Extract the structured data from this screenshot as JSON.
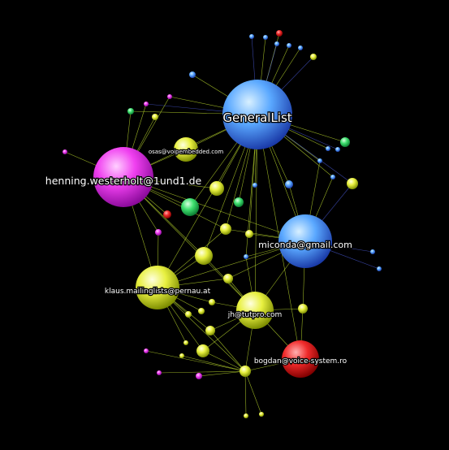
{
  "colors": {
    "background": "#000000",
    "edge": "#c8e830",
    "edge_alt": "#4a5ad8",
    "label": "#ffffff"
  },
  "node_kinds": {
    "blue": [
      "#d8f0ff",
      "#5aa8ff",
      "#1a3aa8"
    ],
    "magenta": [
      "#ffd0ff",
      "#f040f0",
      "#8a0a9a"
    ],
    "yellow": [
      "#ffffe0",
      "#e8f040",
      "#7a8a00"
    ],
    "red": [
      "#ffb0b0",
      "#f02a2a",
      "#800000"
    ],
    "green": [
      "#d8ffe0",
      "#40e070",
      "#0a7a30"
    ]
  },
  "nodes": [
    {
      "id": "generallist",
      "label": "GeneralList",
      "kind": "blue",
      "size": "xl"
    },
    {
      "id": "henning",
      "label": "henning.westerholt@1und1.de",
      "kind": "magenta",
      "size": "xl"
    },
    {
      "id": "miconda",
      "label": "miconda@gmail.com",
      "kind": "blue",
      "size": "lg"
    },
    {
      "id": "klaus",
      "label": "klaus.mailinglists@pernau.at",
      "kind": "yellow",
      "size": "lg"
    },
    {
      "id": "jh",
      "label": "jh@tutpro.com",
      "kind": "yellow",
      "size": "md"
    },
    {
      "id": "bogdan",
      "label": "bogdan@voice-system.ro",
      "kind": "red",
      "size": "md"
    },
    {
      "id": "osas",
      "label": "osas@voipembedded.com",
      "kind": "yellow",
      "size": "sm"
    }
  ],
  "minor_nodes": [
    {
      "kind": "blue"
    },
    {
      "kind": "red"
    },
    {
      "kind": "blue"
    },
    {
      "kind": "blue"
    },
    {
      "kind": "blue"
    },
    {
      "kind": "blue"
    },
    {
      "kind": "yellow"
    },
    {
      "kind": "blue"
    },
    {
      "kind": "magenta"
    },
    {
      "kind": "magenta"
    },
    {
      "kind": "green"
    },
    {
      "kind": "yellow"
    },
    {
      "kind": "magenta"
    },
    {
      "kind": "green"
    },
    {
      "kind": "blue"
    },
    {
      "kind": "blue"
    },
    {
      "kind": "blue"
    },
    {
      "kind": "blue"
    },
    {
      "kind": "yellow"
    },
    {
      "kind": "yellow"
    },
    {
      "kind": "green"
    },
    {
      "kind": "red"
    },
    {
      "kind": "green"
    },
    {
      "kind": "blue"
    },
    {
      "kind": "blue"
    },
    {
      "kind": "yellow"
    },
    {
      "kind": "yellow"
    },
    {
      "kind": "magenta"
    },
    {
      "kind": "yellow"
    },
    {
      "kind": "blue"
    },
    {
      "kind": "yellow"
    },
    {
      "kind": "blue"
    },
    {
      "kind": "blue"
    },
    {
      "kind": "yellow"
    },
    {
      "kind": "yellow"
    },
    {
      "kind": "yellow"
    },
    {
      "kind": "yellow"
    },
    {
      "kind": "yellow"
    },
    {
      "kind": "yellow"
    },
    {
      "kind": "yellow"
    },
    {
      "kind": "magenta"
    },
    {
      "kind": "yellow"
    },
    {
      "kind": "yellow"
    },
    {
      "kind": "yellow"
    },
    {
      "kind": "magenta"
    },
    {
      "kind": "magenta"
    },
    {
      "kind": "yellow"
    }
  ]
}
